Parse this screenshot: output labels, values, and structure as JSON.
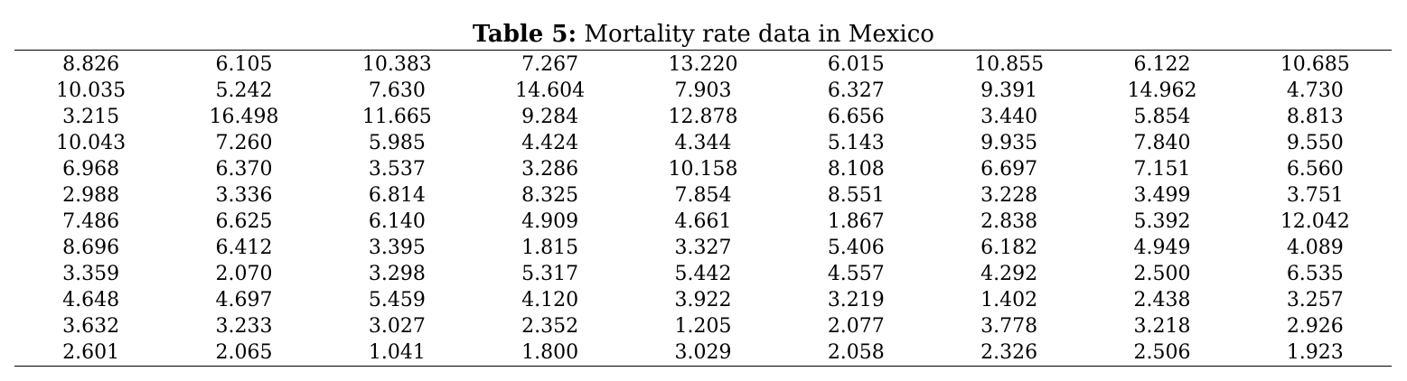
{
  "caption": {
    "label": "Table 5:",
    "text": " Mortality rate data in Mexico"
  },
  "table": {
    "rows": [
      [
        "8.826",
        "6.105",
        "10.383",
        "7.267",
        "13.220",
        "6.015",
        "10.855",
        "6.122",
        "10.685"
      ],
      [
        "10.035",
        "5.242",
        "7.630",
        "14.604",
        "7.903",
        "6.327",
        "9.391",
        "14.962",
        "4.730"
      ],
      [
        "3.215",
        "16.498",
        "11.665",
        "9.284",
        "12.878",
        "6.656",
        "3.440",
        "5.854",
        "8.813"
      ],
      [
        "10.043",
        "7.260",
        "5.985",
        "4.424",
        "4.344",
        "5.143",
        "9.935",
        "7.840",
        "9.550"
      ],
      [
        "6.968",
        "6.370",
        "3.537",
        "3.286",
        "10.158",
        "8.108",
        "6.697",
        "7.151",
        "6.560"
      ],
      [
        "2.988",
        "3.336",
        "6.814",
        "8.325",
        "7.854",
        "8.551",
        "3.228",
        "3.499",
        "3.751"
      ],
      [
        "7.486",
        "6.625",
        "6.140",
        "4.909",
        "4.661",
        "1.867",
        "2.838",
        "5.392",
        "12.042"
      ],
      [
        "8.696",
        "6.412",
        "3.395",
        "1.815",
        "3.327",
        "5.406",
        "6.182",
        "4.949",
        "4.089"
      ],
      [
        "3.359",
        "2.070",
        "3.298",
        "5.317",
        "5.442",
        "4.557",
        "4.292",
        "2.500",
        "6.535"
      ],
      [
        "4.648",
        "4.697",
        "5.459",
        "4.120",
        "3.922",
        "3.219",
        "1.402",
        "2.438",
        "3.257"
      ],
      [
        "3.632",
        "3.233",
        "3.027",
        "2.352",
        "1.205",
        "2.077",
        "3.778",
        "3.218",
        "2.926"
      ],
      [
        "2.601",
        "2.065",
        "1.041",
        "1.800",
        "3.029",
        "2.058",
        "2.326",
        "2.506",
        "1.923"
      ]
    ]
  }
}
